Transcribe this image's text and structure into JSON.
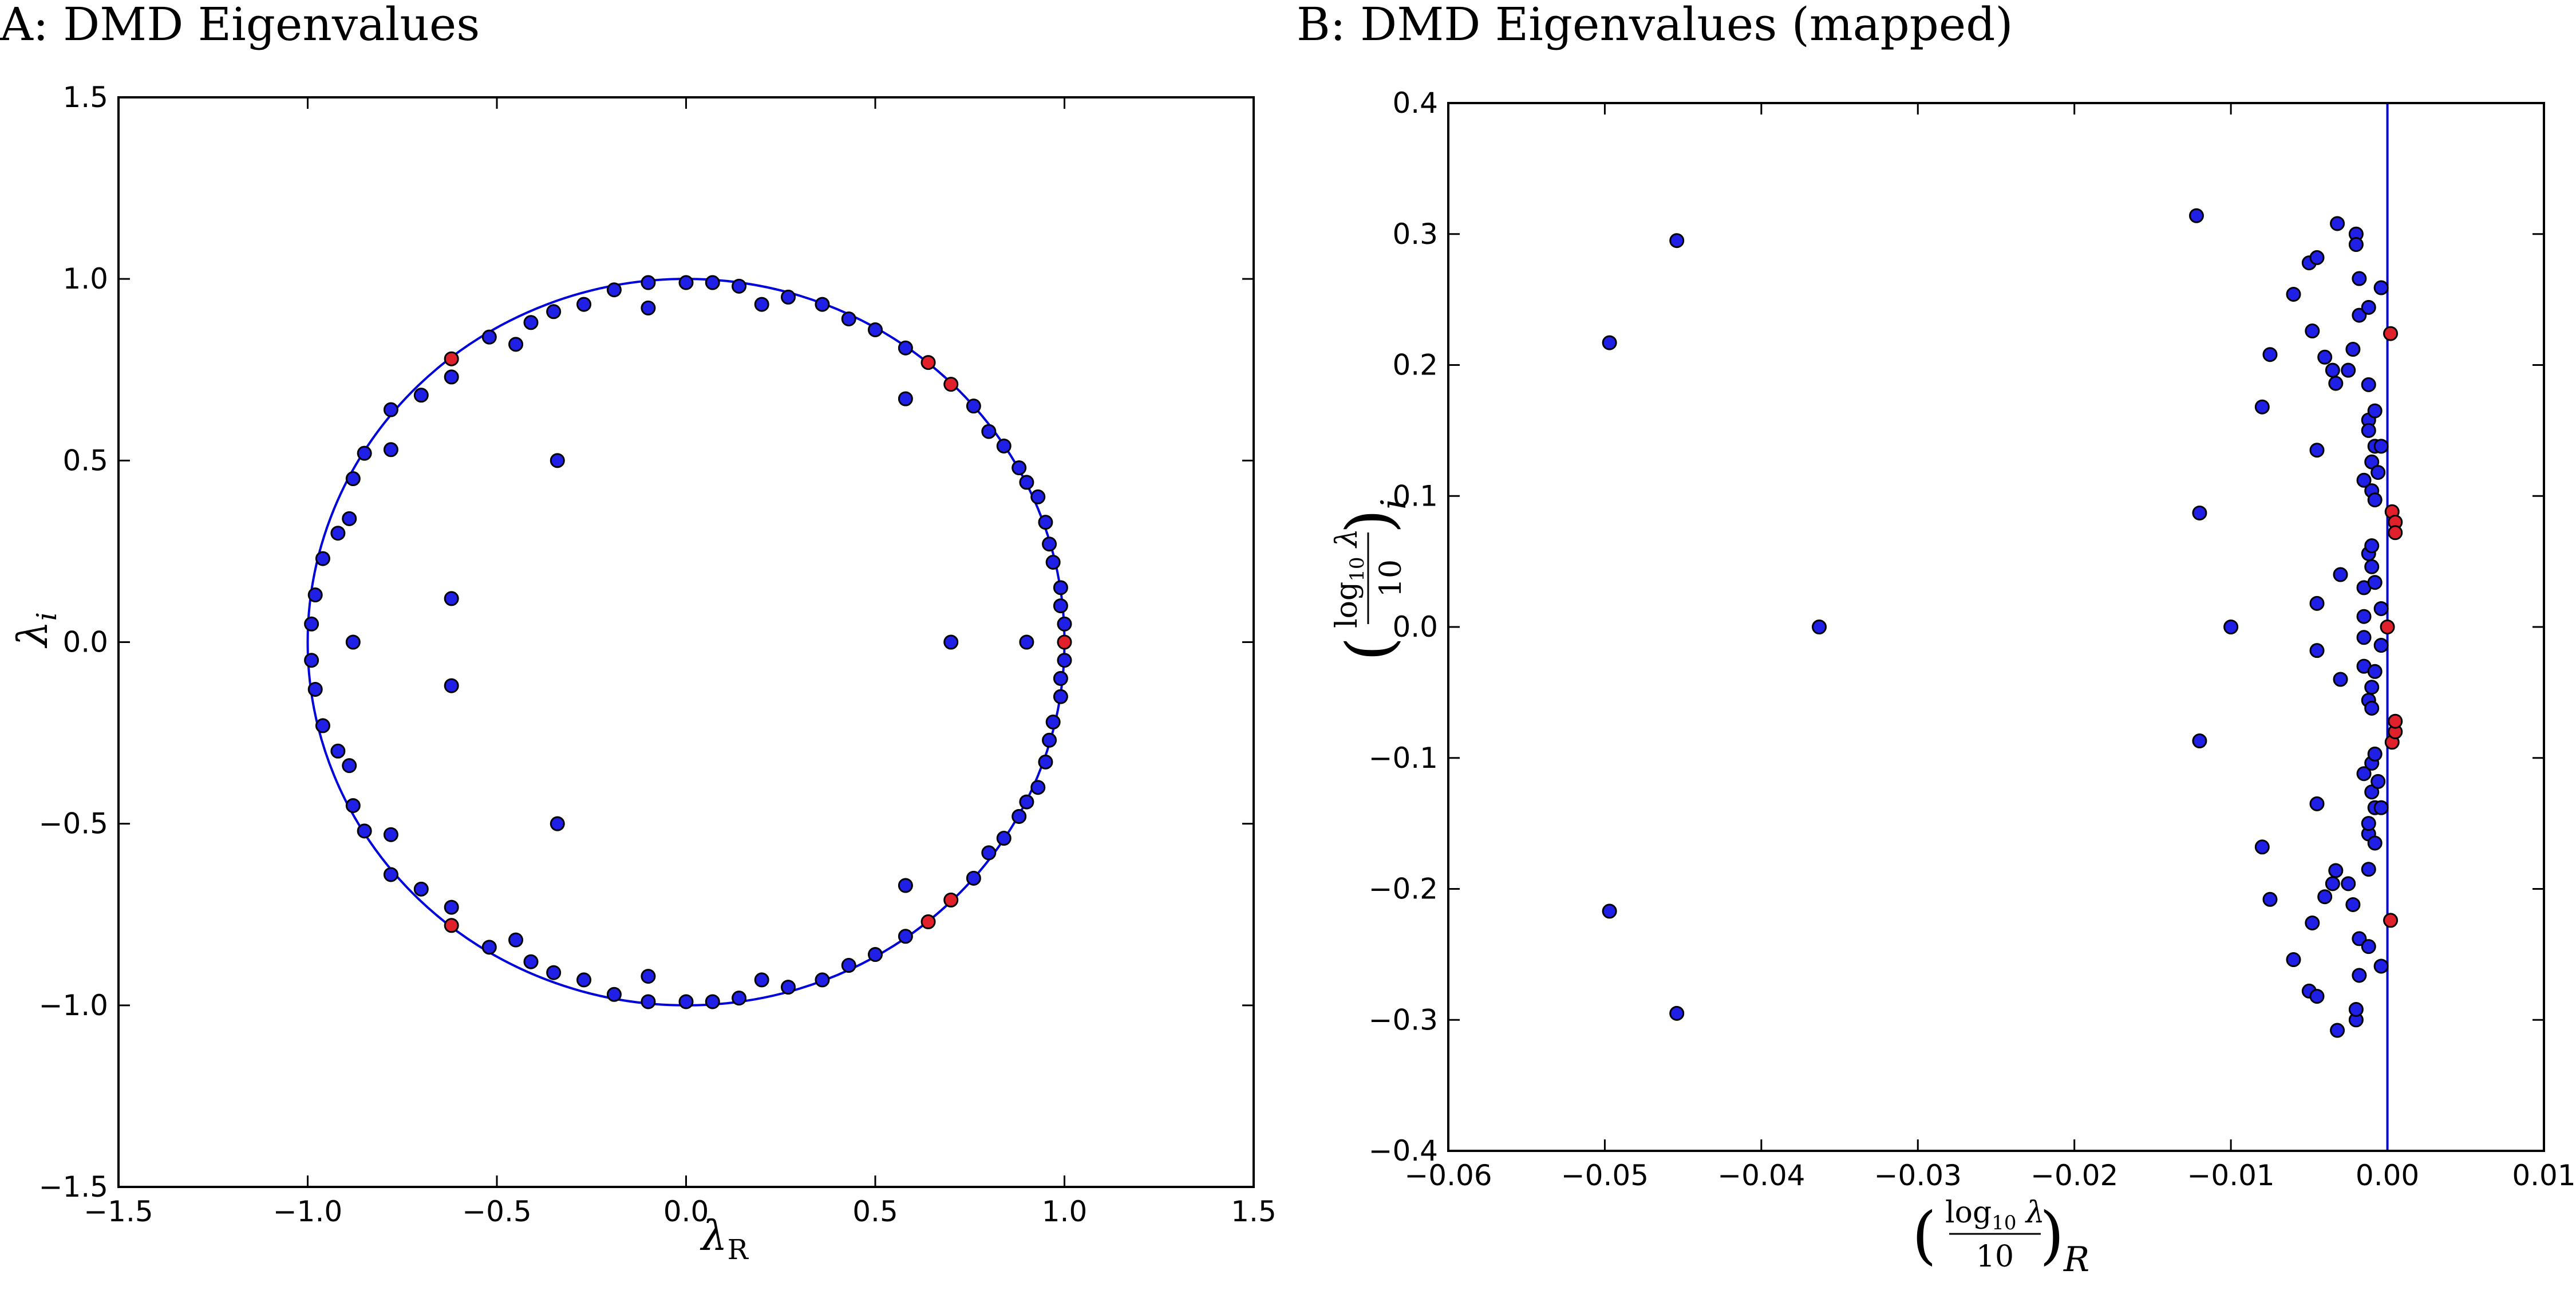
{
  "chart_data": [
    {
      "id": "A",
      "type": "scatter",
      "title": "A: DMD Eigenvalues",
      "xlabel": "λ_R",
      "ylabel": "λ_i",
      "xlim": [
        -1.5,
        1.5
      ],
      "ylim": [
        -1.5,
        1.5
      ],
      "xticks": [
        "−1.5",
        "−1.0",
        "−0.5",
        "0.0",
        "0.5",
        "1.0",
        "1.5"
      ],
      "yticks": [
        "−1.5",
        "−1.0",
        "−0.5",
        "0.0",
        "0.5",
        "1.0",
        "1.5"
      ],
      "grid": false,
      "reference": "unit circle",
      "colors": {
        "point": "#1f1fe6",
        "highlight": "#e0202a",
        "line": "#0000dd"
      },
      "series": [
        {
          "color": "#1f1fe6",
          "points": [
            [
              1.0,
              0.05
            ],
            [
              0.99,
              0.1
            ],
            [
              0.99,
              0.15
            ],
            [
              0.97,
              0.22
            ],
            [
              0.96,
              0.27
            ],
            [
              0.95,
              0.33
            ],
            [
              0.93,
              0.4
            ],
            [
              0.9,
              0.44
            ],
            [
              0.88,
              0.48
            ],
            [
              0.84,
              0.54
            ],
            [
              0.8,
              0.58
            ],
            [
              0.76,
              0.65
            ],
            [
              0.58,
              0.67
            ],
            [
              0.58,
              0.81
            ],
            [
              0.5,
              0.86
            ],
            [
              0.43,
              0.89
            ],
            [
              0.36,
              0.93
            ],
            [
              0.27,
              0.95
            ],
            [
              0.2,
              0.93
            ],
            [
              0.14,
              0.98
            ],
            [
              0.07,
              0.99
            ],
            [
              0.0,
              0.99
            ],
            [
              -0.1,
              0.99
            ],
            [
              -0.1,
              0.92
            ],
            [
              -0.19,
              0.97
            ],
            [
              -0.27,
              0.93
            ],
            [
              -0.35,
              0.91
            ],
            [
              -0.41,
              0.88
            ],
            [
              -0.45,
              0.82
            ],
            [
              -0.52,
              0.84
            ],
            [
              -0.62,
              0.73
            ],
            [
              -0.7,
              0.68
            ],
            [
              -0.78,
              0.64
            ],
            [
              -0.78,
              0.53
            ],
            [
              -0.85,
              0.52
            ],
            [
              -0.88,
              0.45
            ],
            [
              -0.89,
              0.34
            ],
            [
              -0.92,
              0.3
            ],
            [
              -0.96,
              0.23
            ],
            [
              -0.98,
              0.13
            ],
            [
              -0.99,
              0.05
            ],
            [
              -0.88,
              0.0
            ],
            [
              -0.62,
              0.12
            ],
            [
              -0.34,
              0.5
            ],
            [
              0.7,
              0.0
            ],
            [
              0.9,
              0.0
            ],
            [
              1.0,
              -0.05
            ],
            [
              0.99,
              -0.1
            ],
            [
              0.99,
              -0.15
            ],
            [
              0.97,
              -0.22
            ],
            [
              0.96,
              -0.27
            ],
            [
              0.95,
              -0.33
            ],
            [
              0.93,
              -0.4
            ],
            [
              0.9,
              -0.44
            ],
            [
              0.88,
              -0.48
            ],
            [
              0.84,
              -0.54
            ],
            [
              0.8,
              -0.58
            ],
            [
              0.76,
              -0.65
            ],
            [
              0.58,
              -0.67
            ],
            [
              0.58,
              -0.81
            ],
            [
              0.5,
              -0.86
            ],
            [
              0.43,
              -0.89
            ],
            [
              0.36,
              -0.93
            ],
            [
              0.27,
              -0.95
            ],
            [
              0.2,
              -0.93
            ],
            [
              0.14,
              -0.98
            ],
            [
              0.07,
              -0.99
            ],
            [
              0.0,
              -0.99
            ],
            [
              -0.1,
              -0.99
            ],
            [
              -0.1,
              -0.92
            ],
            [
              -0.19,
              -0.97
            ],
            [
              -0.27,
              -0.93
            ],
            [
              -0.35,
              -0.91
            ],
            [
              -0.41,
              -0.88
            ],
            [
              -0.45,
              -0.82
            ],
            [
              -0.52,
              -0.84
            ],
            [
              -0.62,
              -0.73
            ],
            [
              -0.7,
              -0.68
            ],
            [
              -0.78,
              -0.64
            ],
            [
              -0.78,
              -0.53
            ],
            [
              -0.85,
              -0.52
            ],
            [
              -0.88,
              -0.45
            ],
            [
              -0.89,
              -0.34
            ],
            [
              -0.92,
              -0.3
            ],
            [
              -0.96,
              -0.23
            ],
            [
              -0.98,
              -0.13
            ],
            [
              -0.99,
              -0.05
            ],
            [
              -0.62,
              -0.12
            ],
            [
              -0.34,
              -0.5
            ]
          ]
        },
        {
          "color": "#e0202a",
          "points": [
            [
              1.0,
              0.0
            ],
            [
              0.7,
              0.71
            ],
            [
              0.64,
              0.77
            ],
            [
              -0.62,
              0.78
            ],
            [
              0.7,
              -0.71
            ],
            [
              0.64,
              -0.77
            ],
            [
              -0.62,
              -0.78
            ]
          ]
        }
      ]
    },
    {
      "id": "B",
      "type": "scatter",
      "title": "B: DMD Eigenvalues (mapped)",
      "xlabel": "(log10 λ / 10)_R",
      "ylabel": "(log10 λ / 10)_i",
      "xlim": [
        -0.06,
        0.01
      ],
      "ylim": [
        -0.4,
        0.4
      ],
      "xticks": [
        "−0.06",
        "−0.05",
        "−0.04",
        "−0.03",
        "−0.02",
        "−0.01",
        "0.00",
        "0.01"
      ],
      "yticks": [
        "−0.4",
        "−0.3",
        "−0.2",
        "−0.1",
        "0.0",
        "0.1",
        "0.2",
        "0.3",
        "0.4"
      ],
      "grid": false,
      "reference": "vertical line x = 0",
      "colors": {
        "point": "#1f1fe6",
        "highlight": "#e0202a",
        "line": "#0000dd"
      },
      "series": [
        {
          "color": "#1f1fe6",
          "points": [
            [
              -0.0497,
              0.217
            ],
            [
              -0.0454,
              0.295
            ],
            [
              -0.0363,
              0.0
            ],
            [
              -0.0122,
              0.314
            ],
            [
              -0.012,
              0.087
            ],
            [
              -0.01,
              0.0
            ],
            [
              -0.008,
              0.168
            ],
            [
              -0.0075,
              0.208
            ],
            [
              -0.006,
              0.254
            ],
            [
              -0.005,
              0.278
            ],
            [
              -0.0045,
              0.282
            ],
            [
              -0.0048,
              0.226
            ],
            [
              -0.0045,
              0.135
            ],
            [
              -0.0045,
              0.018
            ],
            [
              -0.004,
              0.206
            ],
            [
              -0.0035,
              0.196
            ],
            [
              -0.0033,
              0.186
            ],
            [
              -0.0032,
              0.308
            ],
            [
              -0.003,
              0.04
            ],
            [
              -0.0025,
              0.196
            ],
            [
              -0.0022,
              0.212
            ],
            [
              -0.002,
              0.3
            ],
            [
              -0.002,
              0.292
            ],
            [
              -0.0018,
              0.266
            ],
            [
              -0.0018,
              0.238
            ],
            [
              -0.0015,
              0.112
            ],
            [
              -0.0015,
              0.03
            ],
            [
              -0.0015,
              0.008
            ],
            [
              -0.0012,
              0.244
            ],
            [
              -0.0012,
              0.185
            ],
            [
              -0.0012,
              0.158
            ],
            [
              -0.0012,
              0.15
            ],
            [
              -0.0012,
              0.056
            ],
            [
              -0.001,
              0.104
            ],
            [
              -0.001,
              0.126
            ],
            [
              -0.001,
              0.062
            ],
            [
              -0.001,
              0.046
            ],
            [
              -0.0008,
              0.165
            ],
            [
              -0.0008,
              0.138
            ],
            [
              -0.0008,
              0.097
            ],
            [
              -0.0008,
              0.034
            ],
            [
              -0.0006,
              0.118
            ],
            [
              -0.0004,
              0.259
            ],
            [
              -0.0004,
              0.138
            ],
            [
              -0.0004,
              0.014
            ],
            [
              -0.0497,
              -0.217
            ],
            [
              -0.0454,
              -0.295
            ],
            [
              -0.012,
              -0.087
            ],
            [
              -0.008,
              -0.168
            ],
            [
              -0.0075,
              -0.208
            ],
            [
              -0.006,
              -0.254
            ],
            [
              -0.005,
              -0.278
            ],
            [
              -0.0045,
              -0.282
            ],
            [
              -0.0048,
              -0.226
            ],
            [
              -0.0045,
              -0.135
            ],
            [
              -0.0045,
              -0.018
            ],
            [
              -0.004,
              -0.206
            ],
            [
              -0.0035,
              -0.196
            ],
            [
              -0.0033,
              -0.186
            ],
            [
              -0.0032,
              -0.308
            ],
            [
              -0.003,
              -0.04
            ],
            [
              -0.0025,
              -0.196
            ],
            [
              -0.0022,
              -0.212
            ],
            [
              -0.002,
              -0.3
            ],
            [
              -0.002,
              -0.292
            ],
            [
              -0.0018,
              -0.266
            ],
            [
              -0.0018,
              -0.238
            ],
            [
              -0.0015,
              -0.112
            ],
            [
              -0.0015,
              -0.03
            ],
            [
              -0.0015,
              -0.008
            ],
            [
              -0.0012,
              -0.244
            ],
            [
              -0.0012,
              -0.185
            ],
            [
              -0.0012,
              -0.158
            ],
            [
              -0.0012,
              -0.15
            ],
            [
              -0.0012,
              -0.056
            ],
            [
              -0.001,
              -0.104
            ],
            [
              -0.001,
              -0.126
            ],
            [
              -0.001,
              -0.062
            ],
            [
              -0.001,
              -0.046
            ],
            [
              -0.0008,
              -0.165
            ],
            [
              -0.0008,
              -0.138
            ],
            [
              -0.0008,
              -0.097
            ],
            [
              -0.0008,
              -0.034
            ],
            [
              -0.0006,
              -0.118
            ],
            [
              -0.0004,
              -0.259
            ],
            [
              -0.0004,
              -0.138
            ],
            [
              -0.0004,
              -0.014
            ]
          ]
        },
        {
          "color": "#e0202a",
          "points": [
            [
              0.0002,
              0.224
            ],
            [
              0.0003,
              0.088
            ],
            [
              0.0005,
              0.08
            ],
            [
              0.0005,
              0.072
            ],
            [
              0.0,
              0.0
            ],
            [
              0.0002,
              -0.224
            ],
            [
              0.0003,
              -0.088
            ],
            [
              0.0005,
              -0.08
            ],
            [
              0.0005,
              -0.072
            ]
          ]
        }
      ]
    }
  ]
}
